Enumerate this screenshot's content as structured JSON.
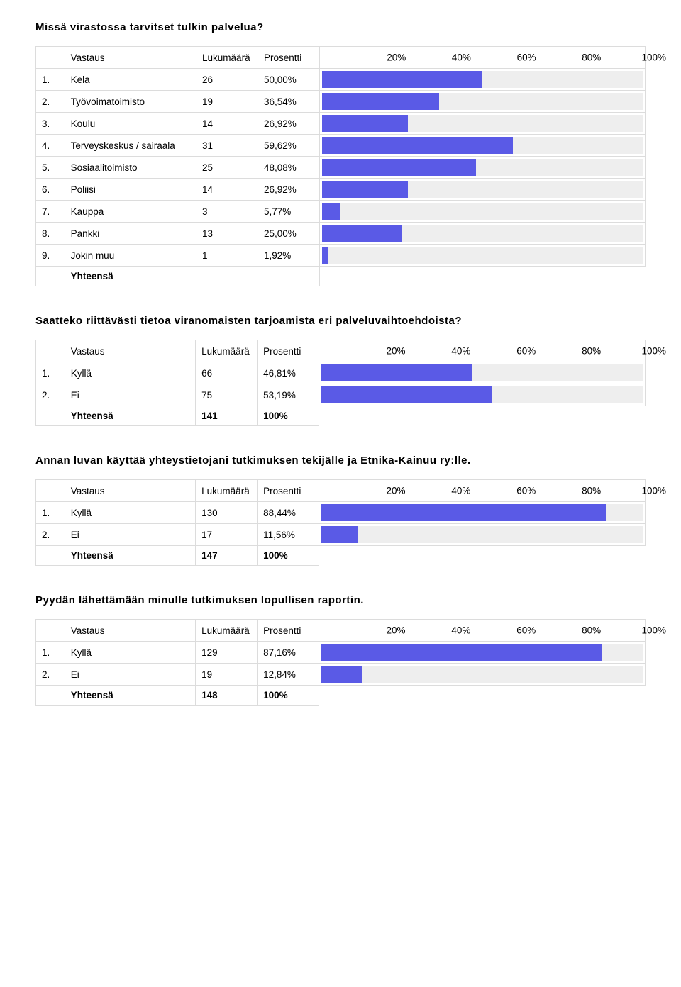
{
  "colors": {
    "bar_fill": "#5a5ae6",
    "bar_bg": "#eeeeee",
    "border": "#dcdcdc",
    "text": "#000000",
    "page_bg": "#ffffff"
  },
  "axis": {
    "ticks": [
      "20%",
      "40%",
      "60%",
      "80%",
      "100%"
    ],
    "positions_pct": [
      20,
      40,
      60,
      80,
      100
    ]
  },
  "header_labels": {
    "vastaus": "Vastaus",
    "lukumaara": "Lukumäärä",
    "prosentti": "Prosentti",
    "yhteensa": "Yhteensä"
  },
  "sections": [
    {
      "title": "Missä virastossa tarvitset tulkin palvelua?",
      "rows": [
        {
          "n": "1.",
          "label": "Kela",
          "count": "26",
          "pct": "50,00%",
          "bar": 50.0
        },
        {
          "n": "2.",
          "label": "Työvoimatoimisto",
          "count": "19",
          "pct": "36,54%",
          "bar": 36.54
        },
        {
          "n": "3.",
          "label": "Koulu",
          "count": "14",
          "pct": "26,92%",
          "bar": 26.92
        },
        {
          "n": "4.",
          "label": "Terveyskeskus / sairaala",
          "count": "31",
          "pct": "59,62%",
          "bar": 59.62
        },
        {
          "n": "5.",
          "label": "Sosiaalitoimisto",
          "count": "25",
          "pct": "48,08%",
          "bar": 48.08
        },
        {
          "n": "6.",
          "label": "Poliisi",
          "count": "14",
          "pct": "26,92%",
          "bar": 26.92
        },
        {
          "n": "7.",
          "label": "Kauppa",
          "count": "3",
          "pct": "5,77%",
          "bar": 5.77
        },
        {
          "n": "8.",
          "label": "Pankki",
          "count": "13",
          "pct": "25,00%",
          "bar": 25.0
        },
        {
          "n": "9.",
          "label": "Jokin muu",
          "count": "1",
          "pct": "1,92%",
          "bar": 1.92
        }
      ],
      "total": {
        "label": "Yhteensä",
        "count": "",
        "pct": ""
      }
    },
    {
      "title": "Saatteko riittävästi tietoa viranomaisten tarjoamista eri palveluvaihtoehdoista?",
      "rows": [
        {
          "n": "1.",
          "label": "Kyllä",
          "count": "66",
          "pct": "46,81%",
          "bar": 46.81
        },
        {
          "n": "2.",
          "label": "Ei",
          "count": "75",
          "pct": "53,19%",
          "bar": 53.19
        }
      ],
      "total": {
        "label": "Yhteensä",
        "count": "141",
        "pct": "100%"
      }
    },
    {
      "title": "Annan luvan käyttää yhteystietojani tutkimuksen tekijälle ja Etnika-Kainuu ry:lle.",
      "rows": [
        {
          "n": "1.",
          "label": "Kyllä",
          "count": "130",
          "pct": "88,44%",
          "bar": 88.44
        },
        {
          "n": "2.",
          "label": "Ei",
          "count": "17",
          "pct": "11,56%",
          "bar": 11.56
        }
      ],
      "total": {
        "label": "Yhteensä",
        "count": "147",
        "pct": "100%"
      }
    },
    {
      "title": "Pyydän lähettämään minulle tutkimuksen lopullisen raportin.",
      "rows": [
        {
          "n": "1.",
          "label": "Kyllä",
          "count": "129",
          "pct": "87,16%",
          "bar": 87.16
        },
        {
          "n": "2.",
          "label": "Ei",
          "count": "19",
          "pct": "12,84%",
          "bar": 12.84
        }
      ],
      "total": {
        "label": "Yhteensä",
        "count": "148",
        "pct": "100%"
      }
    }
  ]
}
